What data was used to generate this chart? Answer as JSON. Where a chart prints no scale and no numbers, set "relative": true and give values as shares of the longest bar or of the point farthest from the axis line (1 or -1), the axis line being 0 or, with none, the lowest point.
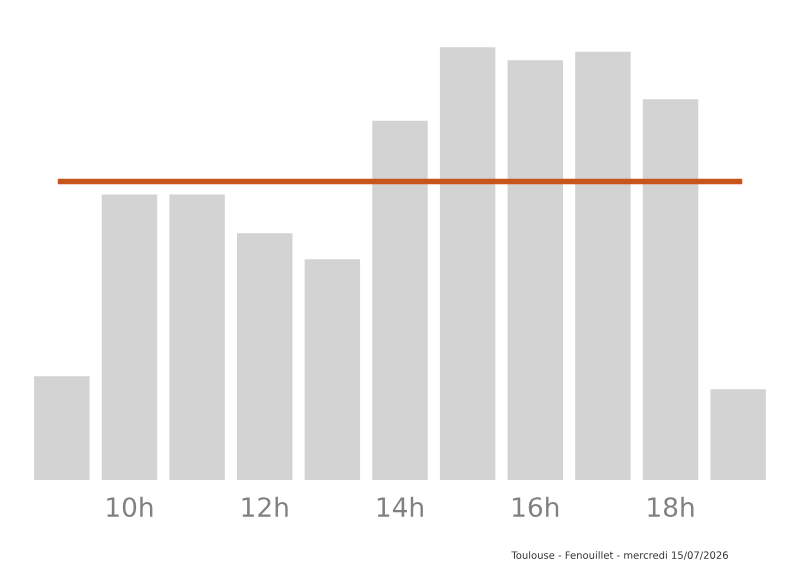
{
  "chart_data": {
    "type": "bar",
    "relative": true,
    "categories": [
      null,
      "10h",
      null,
      "12h",
      null,
      "14h",
      null,
      "16h",
      null,
      "18h",
      null
    ],
    "values": [
      0.24,
      0.66,
      0.66,
      0.57,
      0.51,
      0.83,
      1,
      0.97,
      0.99,
      0.88,
      0.21
    ],
    "color": "#d3d3d3",
    "ref_lines": [
      {
        "axis": "y",
        "value": 0.69,
        "color": "#c8561a"
      }
    ],
    "annotations": [
      "Toulouse - Fenouillet - mercredi 15/07/2026"
    ],
    "grid": false,
    "legend": false
  }
}
